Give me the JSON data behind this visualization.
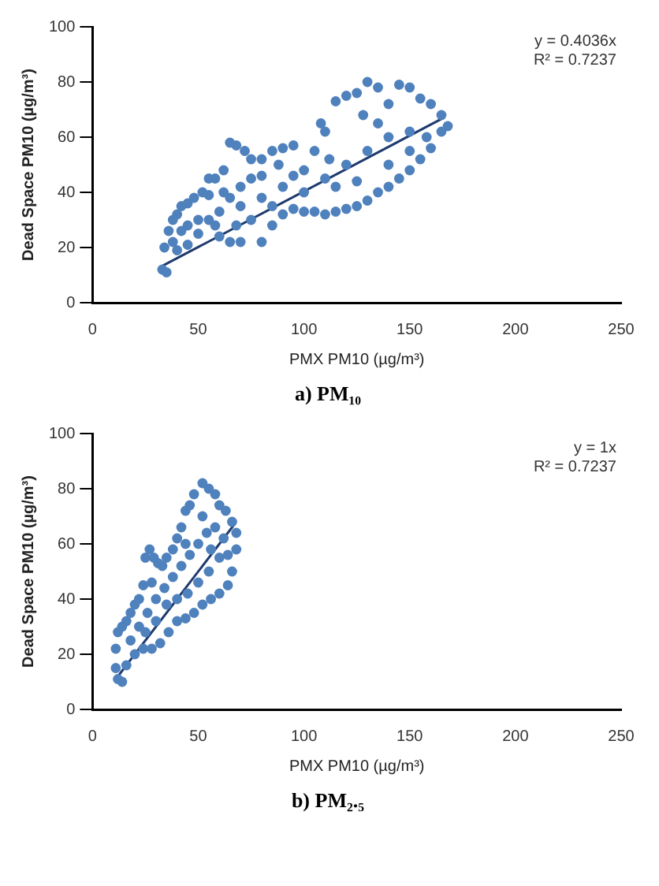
{
  "chart_data": [
    {
      "type": "scatter",
      "title": "a) PM₁₀",
      "xlabel": "PMX PM10 (µg/m³)",
      "ylabel": "Dead Space PM10 (µg/m³)",
      "annotations": [
        "y = 0.4036x",
        "R² = 0.7237"
      ],
      "xlim": [
        0,
        250
      ],
      "xticks": [
        0,
        50,
        100,
        150,
        200,
        250
      ],
      "ylim": [
        0,
        100
      ],
      "yticks": [
        0,
        20,
        40,
        60,
        80,
        100
      ],
      "grid": false,
      "series": [
        {
          "marker": "circle",
          "color": "#4f81bd",
          "x": [
            33,
            35,
            34,
            36,
            38,
            40,
            42,
            45,
            48,
            52,
            55,
            58,
            62,
            65,
            68,
            72,
            75,
            80,
            85,
            90,
            95,
            88,
            80,
            75,
            70,
            65,
            60,
            55,
            50,
            45,
            40,
            60,
            65,
            70,
            80,
            85,
            90,
            95,
            100,
            105,
            110,
            115,
            120,
            125,
            130,
            135,
            140,
            145,
            150,
            155,
            160,
            165,
            168,
            165,
            160,
            155,
            150,
            145,
            140,
            135,
            130,
            125,
            120,
            115,
            110,
            108,
            105,
            100,
            110,
            120,
            130,
            140,
            150,
            158,
            125,
            115,
            100,
            90,
            85,
            75,
            68,
            58,
            50,
            45,
            38,
            42,
            80,
            70,
            62,
            55,
            150,
            140,
            135,
            128,
            112,
            95
          ],
          "values": [
            12,
            11,
            20,
            26,
            30,
            32,
            35,
            36,
            38,
            40,
            39,
            45,
            48,
            58,
            57,
            55,
            52,
            52,
            55,
            56,
            57,
            50,
            46,
            45,
            42,
            38,
            33,
            30,
            25,
            21,
            19,
            24,
            22,
            22,
            22,
            28,
            32,
            34,
            33,
            33,
            32,
            33,
            34,
            35,
            37,
            40,
            42,
            45,
            48,
            52,
            56,
            62,
            64,
            68,
            72,
            74,
            78,
            79,
            72,
            78,
            80,
            76,
            75,
            73,
            62,
            65,
            55,
            48,
            45,
            50,
            55,
            60,
            62,
            60,
            44,
            42,
            40,
            42,
            35,
            30,
            28,
            28,
            30,
            28,
            22,
            26,
            38,
            35,
            40,
            45,
            55,
            50,
            65,
            68,
            52,
            46
          ]
        },
        {
          "type": "line",
          "marker": "none",
          "color": "#1f3a6e",
          "x": [
            33,
            165
          ],
          "values": [
            13.3,
            66.6
          ]
        }
      ]
    },
    {
      "type": "scatter",
      "title": "b) PM₂.₅",
      "xlabel": "PMX PM10 (µg/m³)",
      "ylabel": "Dead Space PM10 (µg/m³)",
      "annotations": [
        "y = 1x",
        "R² = 0.7237"
      ],
      "xlim": [
        0,
        250
      ],
      "xticks": [
        0,
        50,
        100,
        150,
        200,
        250
      ],
      "ylim": [
        0,
        100
      ],
      "yticks": [
        0,
        20,
        40,
        60,
        80,
        100
      ],
      "grid": false,
      "series": [
        {
          "marker": "circle",
          "color": "#4f81bd",
          "x": [
            12,
            14,
            11,
            11,
            12,
            14,
            16,
            18,
            20,
            22,
            24,
            25,
            27,
            29,
            31,
            33,
            35,
            38,
            40,
            42,
            44,
            46,
            48,
            52,
            55,
            58,
            60,
            63,
            66,
            68,
            68,
            66,
            64,
            60,
            56,
            52,
            48,
            44,
            40,
            36,
            32,
            28,
            24,
            20,
            16,
            18,
            22,
            26,
            30,
            34,
            38,
            42,
            46,
            50,
            54,
            58,
            62,
            60,
            55,
            50,
            45,
            40,
            35,
            30,
            25,
            28,
            44,
            52,
            64,
            56
          ],
          "values": [
            11,
            10,
            15,
            22,
            28,
            30,
            32,
            35,
            38,
            40,
            45,
            55,
            58,
            55,
            53,
            52,
            55,
            58,
            62,
            66,
            72,
            74,
            78,
            82,
            80,
            78,
            74,
            72,
            68,
            64,
            58,
            50,
            45,
            42,
            40,
            38,
            35,
            33,
            32,
            28,
            24,
            22,
            22,
            20,
            16,
            25,
            30,
            35,
            40,
            44,
            48,
            52,
            56,
            60,
            64,
            66,
            62,
            55,
            50,
            46,
            42,
            40,
            38,
            32,
            28,
            46,
            60,
            70,
            56,
            58
          ]
        },
        {
          "type": "line",
          "marker": "none",
          "color": "#1f3a6e",
          "x": [
            12,
            67
          ],
          "values": [
            12,
            67
          ]
        }
      ]
    }
  ]
}
